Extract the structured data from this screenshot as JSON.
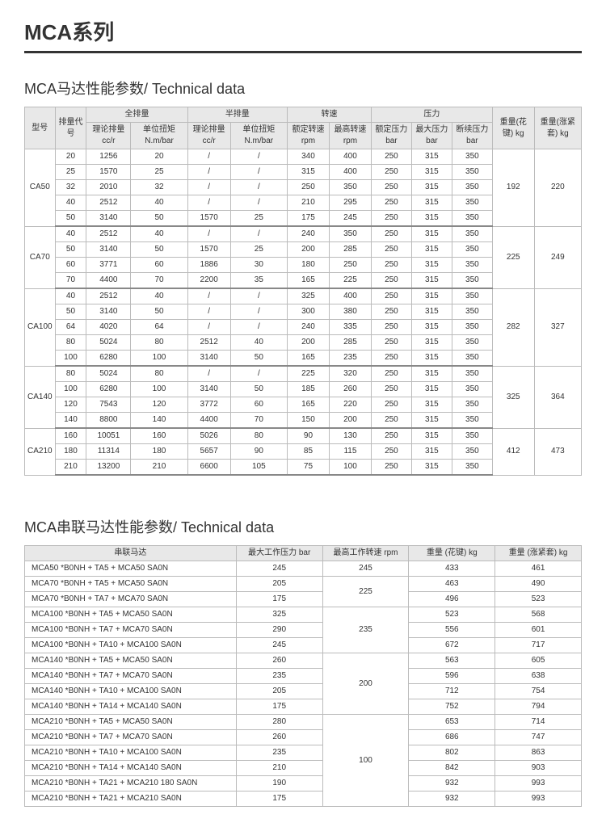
{
  "pageTitle": "MCA系列",
  "section1": {
    "title": "MCA马达性能参数/ Technical data",
    "headerGroups": {
      "modelCol": "型号",
      "codeCol": "排量代号",
      "fullDisp": "全排量",
      "halfDisp": "半排量",
      "speed": "转速",
      "pressure": "压力",
      "weightKey": "重量(花键) kg",
      "weightSleeve": "重量(涨紧套) kg"
    },
    "subHeaders": {
      "theoreticalDisp": "理论排量 cc/r",
      "unitTorque": "单位扭矩 N.m/bar",
      "ratedSpeed": "额定转速 rpm",
      "maxSpeed": "最高转速 rpm",
      "ratedPress": "额定压力 bar",
      "maxPress": "最大压力 bar",
      "intPress": "断续压力 bar"
    },
    "groups": [
      {
        "model": "CA50",
        "weightKey": "192",
        "weightSleeve": "220",
        "rows": [
          [
            "20",
            "1256",
            "20",
            "/",
            "/",
            "340",
            "400",
            "250",
            "315",
            "350"
          ],
          [
            "25",
            "1570",
            "25",
            "/",
            "/",
            "315",
            "400",
            "250",
            "315",
            "350"
          ],
          [
            "32",
            "2010",
            "32",
            "/",
            "/",
            "250",
            "350",
            "250",
            "315",
            "350"
          ],
          [
            "40",
            "2512",
            "40",
            "/",
            "/",
            "210",
            "295",
            "250",
            "315",
            "350"
          ],
          [
            "50",
            "3140",
            "50",
            "1570",
            "25",
            "175",
            "245",
            "250",
            "315",
            "350"
          ]
        ]
      },
      {
        "model": "CA70",
        "weightKey": "225",
        "weightSleeve": "249",
        "rows": [
          [
            "40",
            "2512",
            "40",
            "/",
            "/",
            "240",
            "350",
            "250",
            "315",
            "350"
          ],
          [
            "50",
            "3140",
            "50",
            "1570",
            "25",
            "200",
            "285",
            "250",
            "315",
            "350"
          ],
          [
            "60",
            "3771",
            "60",
            "1886",
            "30",
            "180",
            "250",
            "250",
            "315",
            "350"
          ],
          [
            "70",
            "4400",
            "70",
            "2200",
            "35",
            "165",
            "225",
            "250",
            "315",
            "350"
          ]
        ]
      },
      {
        "model": "CA100",
        "weightKey": "282",
        "weightSleeve": "327",
        "rows": [
          [
            "40",
            "2512",
            "40",
            "/",
            "/",
            "325",
            "400",
            "250",
            "315",
            "350"
          ],
          [
            "50",
            "3140",
            "50",
            "/",
            "/",
            "300",
            "380",
            "250",
            "315",
            "350"
          ],
          [
            "64",
            "4020",
            "64",
            "/",
            "/",
            "240",
            "335",
            "250",
            "315",
            "350"
          ],
          [
            "80",
            "5024",
            "80",
            "2512",
            "40",
            "200",
            "285",
            "250",
            "315",
            "350"
          ],
          [
            "100",
            "6280",
            "100",
            "3140",
            "50",
            "165",
            "235",
            "250",
            "315",
            "350"
          ]
        ]
      },
      {
        "model": "CA140",
        "weightKey": "325",
        "weightSleeve": "364",
        "rows": [
          [
            "80",
            "5024",
            "80",
            "/",
            "/",
            "225",
            "320",
            "250",
            "315",
            "350"
          ],
          [
            "100",
            "6280",
            "100",
            "3140",
            "50",
            "185",
            "260",
            "250",
            "315",
            "350"
          ],
          [
            "120",
            "7543",
            "120",
            "3772",
            "60",
            "165",
            "220",
            "250",
            "315",
            "350"
          ],
          [
            "140",
            "8800",
            "140",
            "4400",
            "70",
            "150",
            "200",
            "250",
            "315",
            "350"
          ]
        ]
      },
      {
        "model": "CA210",
        "weightKey": "412",
        "weightSleeve": "473",
        "rows": [
          [
            "160",
            "10051",
            "160",
            "5026",
            "80",
            "90",
            "130",
            "250",
            "315",
            "350"
          ],
          [
            "180",
            "11314",
            "180",
            "5657",
            "90",
            "85",
            "115",
            "250",
            "315",
            "350"
          ],
          [
            "210",
            "13200",
            "210",
            "6600",
            "105",
            "75",
            "100",
            "250",
            "315",
            "350"
          ]
        ]
      }
    ]
  },
  "section2": {
    "title": "MCA串联马达性能参数/ Technical data",
    "headers": {
      "motor": "串联马达",
      "maxPress": "最大工作压力 bar",
      "maxSpeed": "最高工作转速 rpm",
      "weightKey": "重量 (花键) kg",
      "weightSleeve": "重量 (涨紧套) kg"
    },
    "groups": [
      {
        "speed": "245",
        "rows": [
          [
            "MCA50 *B0NH + TA5 + MCA50 SA0N",
            "245",
            "433",
            "461"
          ]
        ]
      },
      {
        "speed": "225",
        "rows": [
          [
            "MCA70 *B0NH + TA5 + MCA50 SA0N",
            "205",
            "463",
            "490"
          ],
          [
            "MCA70 *B0NH + TA7 + MCA70 SA0N",
            "175",
            "496",
            "523"
          ]
        ]
      },
      {
        "speed": "235",
        "rows": [
          [
            "MCA100 *B0NH + TA5 + MCA50 SA0N",
            "325",
            "523",
            "568"
          ],
          [
            "MCA100 *B0NH + TA7 + MCA70 SA0N",
            "290",
            "556",
            "601"
          ],
          [
            "MCA100 *B0NH + TA10 + MCA100 SA0N",
            "245",
            "672",
            "717"
          ]
        ]
      },
      {
        "speed": "200",
        "rows": [
          [
            "MCA140 *B0NH + TA5 + MCA50 SA0N",
            "260",
            "563",
            "605"
          ],
          [
            "MCA140 *B0NH + TA7 + MCA70 SA0N",
            "235",
            "596",
            "638"
          ],
          [
            "MCA140 *B0NH + TA10 + MCA100 SA0N",
            "205",
            "712",
            "754"
          ],
          [
            "MCA140 *B0NH + TA14 + MCA140 SA0N",
            "175",
            "752",
            "794"
          ]
        ]
      },
      {
        "speed": "100",
        "rows": [
          [
            "MCA210 *B0NH + TA5 + MCA50 SA0N",
            "280",
            "653",
            "714"
          ],
          [
            "MCA210 *B0NH + TA7 + MCA70 SA0N",
            "260",
            "686",
            "747"
          ],
          [
            "MCA210 *B0NH + TA10 + MCA100 SA0N",
            "235",
            "802",
            "863"
          ],
          [
            "MCA210 *B0NH + TA14 + MCA140 SA0N",
            "210",
            "842",
            "903"
          ],
          [
            "MCA210 *B0NH + TA21 + MCA210 180 SA0N",
            "190",
            "932",
            "993"
          ],
          [
            "MCA210 *B0NH + TA21 + MCA210 SA0N",
            "175",
            "932",
            "993"
          ]
        ]
      }
    ]
  }
}
